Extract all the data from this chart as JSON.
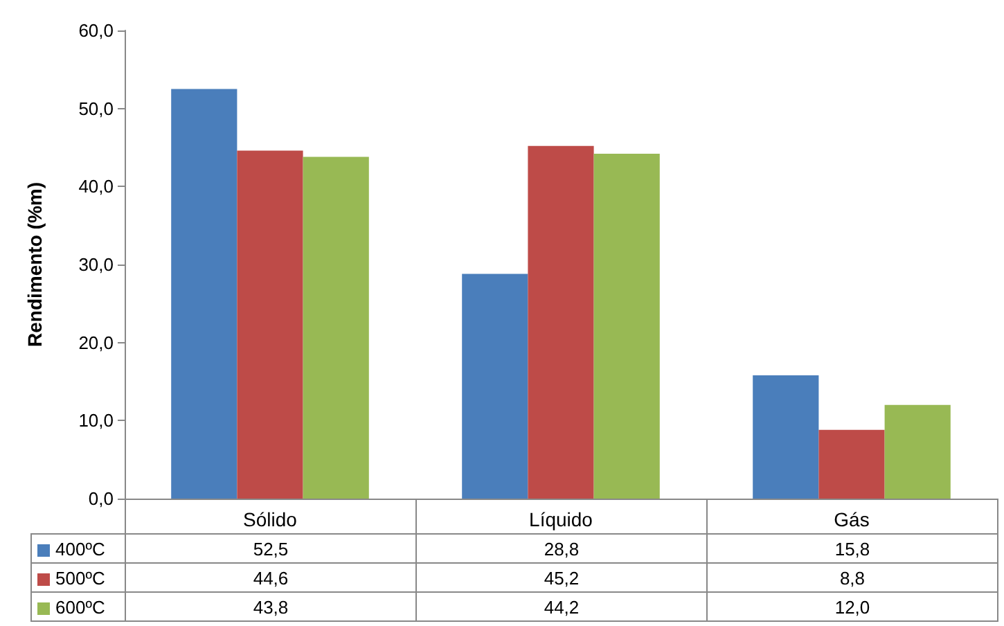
{
  "chart_data": {
    "type": "bar",
    "ylabel": "Rendimento (%m)",
    "categories": [
      "Sólido",
      "Líquido",
      "Gás"
    ],
    "series": [
      {
        "name": "400ºC",
        "color": "#4a7ebb",
        "values": [
          52.5,
          28.8,
          15.8
        ],
        "value_labels": [
          "52,5",
          "28,8",
          "15,8"
        ]
      },
      {
        "name": "500ºC",
        "color": "#be4b48",
        "values": [
          44.6,
          45.2,
          8.8
        ],
        "value_labels": [
          "44,6",
          "45,2",
          "8,8"
        ]
      },
      {
        "name": "600ºC",
        "color": "#98b954",
        "values": [
          43.8,
          44.2,
          12.0
        ],
        "value_labels": [
          "43,8",
          "44,2",
          "12,0"
        ]
      }
    ],
    "ylim": [
      0,
      60
    ],
    "yticks": [
      {
        "value": 0,
        "label": "0,0"
      },
      {
        "value": 10,
        "label": "10,0"
      },
      {
        "value": 20,
        "label": "20,0"
      },
      {
        "value": 30,
        "label": "30,0"
      },
      {
        "value": 40,
        "label": "40,0"
      },
      {
        "value": 50,
        "label": "50,0"
      },
      {
        "value": 60,
        "label": "60,0"
      }
    ],
    "grid": false,
    "legend": "bottom"
  }
}
